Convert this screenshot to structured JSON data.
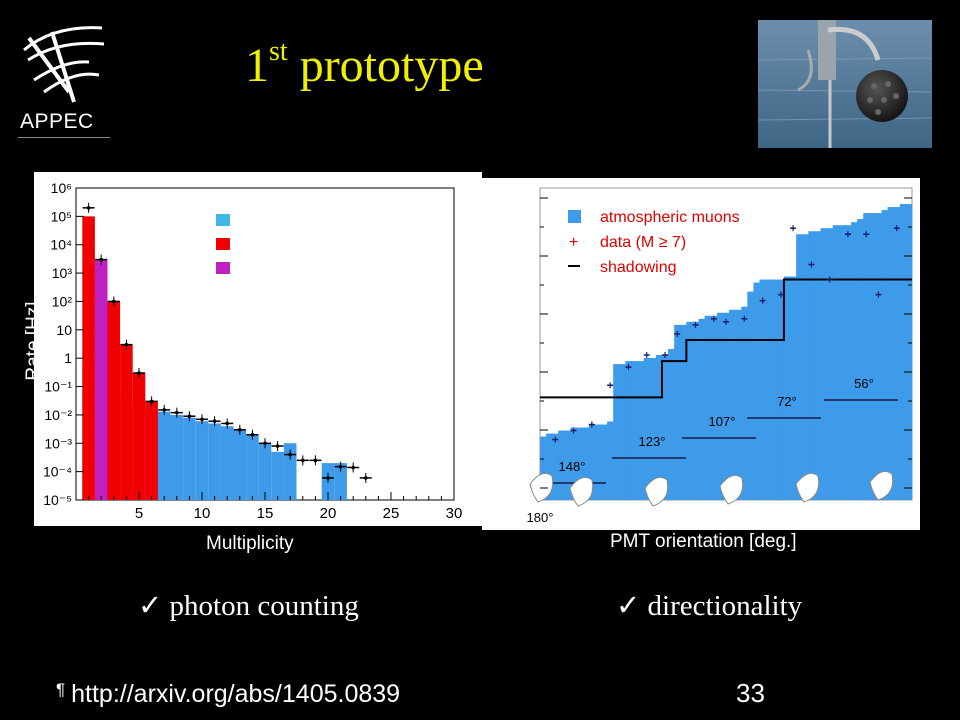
{
  "logo": {
    "text": "APPEC"
  },
  "title": {
    "main": "1",
    "sup": "st",
    "rest": " prototype"
  },
  "checks": {
    "left": "✓ photon counting",
    "right": "✓ directionality"
  },
  "footer": {
    "pilcrow": "¶",
    "link": "http://arxiv.org/abs/1405.0839"
  },
  "page_number": "33",
  "colors": {
    "title": "#f0f000",
    "muons": "#3d9be9",
    "red": "#f00000",
    "magenta": "#c020c0",
    "data": "#1a1a6a"
  },
  "chart_data": [
    {
      "type": "bar",
      "xlabel": "Multiplicity",
      "ylabel": "Rate [Hz]",
      "xlim": [
        0,
        30
      ],
      "ylim": [
        1e-05,
        1000000.0
      ],
      "log_y": true,
      "x_ticks": [
        "5",
        "10",
        "15",
        "20",
        "25",
        "30"
      ],
      "y_ticks": [
        "10⁶",
        "10⁵",
        "10⁴",
        "10³",
        "10²",
        "10",
        "1",
        "10⁻¹",
        "10⁻²",
        "10⁻³",
        "10⁻⁴",
        "10⁻⁵"
      ],
      "legend": {
        "placement": "top-center",
        "entries": [
          "",
          "",
          ""
        ],
        "colors": [
          "#3fb8e8",
          "#f00000",
          "#c020c0"
        ]
      },
      "series": [
        {
          "color": "#3d9be9",
          "x": [
            1,
            2,
            3,
            4,
            5,
            6,
            7,
            8,
            9,
            10,
            11,
            12,
            13,
            14,
            15,
            16,
            17,
            20,
            21
          ],
          "values": [
            0.5,
            0.1,
            0.06,
            0.04,
            0.025,
            0.015,
            0.013,
            0.01,
            0.008,
            0.006,
            0.005,
            0.004,
            0.003,
            0.002,
            0.001,
            0.0005,
            0.001,
            0.0002,
            0.0002
          ]
        },
        {
          "color": "#f00000",
          "x": [
            1,
            2,
            3,
            4,
            5,
            6
          ],
          "values": [
            100000.0,
            2000,
            100,
            3,
            0.3,
            0.03
          ]
        },
        {
          "color": "#c020c0",
          "x": [
            2
          ],
          "values": [
            3000
          ]
        }
      ],
      "data_points": {
        "x": [
          1,
          2,
          3,
          4,
          5,
          6,
          7,
          8,
          9,
          10,
          11,
          12,
          13,
          14,
          15,
          16,
          17,
          18,
          19,
          20,
          21,
          22,
          23
        ],
        "y": [
          200000,
          3000,
          100,
          3,
          0.3,
          0.03,
          0.015,
          0.012,
          0.009,
          0.007,
          0.006,
          0.005,
          0.003,
          0.002,
          0.001,
          0.0008,
          0.0004,
          0.00025,
          0.00025,
          6e-05,
          0.00015,
          0.00014,
          6e-05
        ]
      }
    },
    {
      "type": "bar",
      "xlabel": "PMT orientation [deg.]",
      "legend": {
        "placement": "top-left",
        "entries": [
          "atmospheric muons",
          "data (M ≥ 7)",
          "shadowing"
        ]
      },
      "x_ticks": [
        "180°"
      ],
      "ring_labels": [
        "148°",
        "123°",
        "107°",
        "72°",
        "56°"
      ],
      "ylim": [
        0,
        1
      ],
      "series": [
        {
          "name": "atmospheric muons",
          "color": "#3d9be9",
          "bins": [
            0,
            1,
            2,
            3,
            4,
            5,
            6,
            7,
            8,
            9,
            10,
            11,
            12,
            13,
            14,
            15,
            16,
            17,
            18,
            19,
            20,
            21,
            22,
            23,
            24,
            25,
            26,
            27,
            28,
            29,
            30,
            31,
            32,
            33,
            34,
            35,
            36,
            37,
            38,
            39,
            40,
            41,
            42,
            43,
            44,
            45,
            46,
            47,
            48,
            49,
            50,
            51,
            52,
            53,
            54,
            55,
            56,
            57,
            58,
            59,
            60
          ],
          "values": [
            0.21,
            0.22,
            0.22,
            0.23,
            0.23,
            0.24,
            0.24,
            0.24,
            0.25,
            0.25,
            0.25,
            0.26,
            0.45,
            0.45,
            0.46,
            0.46,
            0.46,
            0.47,
            0.47,
            0.48,
            0.48,
            0.5,
            0.58,
            0.58,
            0.59,
            0.59,
            0.6,
            0.61,
            0.61,
            0.62,
            0.62,
            0.63,
            0.63,
            0.64,
            0.69,
            0.72,
            0.73,
            0.73,
            0.73,
            0.73,
            0.74,
            0.74,
            0.88,
            0.88,
            0.89,
            0.89,
            0.9,
            0.9,
            0.91,
            0.91,
            0.91,
            0.92,
            0.93,
            0.95,
            0.95,
            0.95,
            0.96,
            0.97,
            0.97,
            0.98,
            0.98
          ]
        }
      ],
      "shadowing_step": [
        0.34,
        0.34,
        0.34,
        0.34,
        0.34,
        0.34,
        0.34,
        0.34,
        0.34,
        0.34,
        0.34,
        0.34,
        0.34,
        0.34,
        0.34,
        0.34,
        0.34,
        0.34,
        0.34,
        0.34,
        0.46,
        0.46,
        0.46,
        0.46,
        0.53,
        0.53,
        0.53,
        0.53,
        0.53,
        0.53,
        0.53,
        0.53,
        0.53,
        0.53,
        0.53,
        0.53,
        0.53,
        0.53,
        0.53,
        0.53,
        0.73,
        0.73,
        0.73,
        0.73,
        0.73,
        0.73,
        0.73,
        0.73,
        0.73,
        0.73,
        0.73,
        0.73,
        0.73,
        0.73,
        0.73,
        0.73,
        0.73,
        0.73,
        0.73,
        0.73,
        0.73
      ],
      "data_points": {
        "x": [
          2,
          5,
          8,
          11,
          14,
          17,
          20,
          22,
          25,
          28,
          30,
          33,
          36,
          39,
          41,
          44,
          47,
          50,
          53,
          55,
          58
        ],
        "y": [
          0.2,
          0.23,
          0.25,
          0.38,
          0.44,
          0.48,
          0.48,
          0.55,
          0.58,
          0.6,
          0.59,
          0.6,
          0.66,
          0.68,
          0.9,
          0.78,
          0.73,
          0.88,
          0.88,
          0.68,
          0.9
        ]
      }
    }
  ]
}
